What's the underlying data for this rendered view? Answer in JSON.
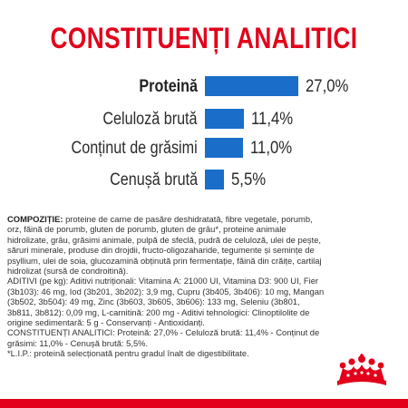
{
  "title": "CONSTITUENȚI ANALITICI",
  "colors": {
    "title": "#e2001a",
    "bar": "#1a6ec9",
    "text": "#2b2b2b",
    "footer_bar": "#e2001a",
    "logo": "#e2001a"
  },
  "chart_data": {
    "type": "bar",
    "orientation": "horizontal",
    "categories": [
      "Proteină",
      "Celuloză brută",
      "Conținut de grăsimi",
      "Cenușă brută"
    ],
    "values": [
      27.0,
      11.4,
      11.0,
      5.5
    ],
    "value_labels": [
      "27,0%",
      "11,4%",
      "11,0%",
      "5,5%"
    ],
    "unit": "%"
  },
  "composition": {
    "heading": "COMPOZIȚIE:",
    "ingredients": " proteine de carne de pasăre deshidratată, fibre vegetale, porumb, orz, făină de porumb, gluten de porumb, gluten de grâu*, proteine animale hidrolizate, grâu, grăsimi animale, pulpă de sfeclă, pudră de celuloză, ulei de pește, săruri minerale, produse din drojdii, fructo-oligozaharide, tegumente și semințe de psyllium, ulei de soia, glucozamină obținută prin fermentație, făină din crăițe, cartilaj hidrolizat (sursă de condroitină).",
    "additives": "ADITIVI (pe kg): Aditivi nutriționali: Vitamina A: 21000 UI, Vitamina D3: 900 UI, Fier (3b103): 46 mg, Iod (3b201, 3b202): 3,9 mg, Cupru (3b405, 3b406): 10 mg, Mangan (3b502, 3b504): 49 mg, Zinc (3b603, 3b605, 3b606): 133 mg, Seleniu (3b801, 3b811, 3b812): 0,09 mg, L-carnitină: 200 mg - Aditivi tehnologici: Clinoptilolite de origine sedimentară: 5 g - Conservanți - Antioxidanți.",
    "constituents": "CONSTITUENȚI ANALITICI: Proteină: 27,0% - Celuloză brută: 11,4% - Conținut de grăsimi: 11,0% - Cenușă brută: 5,5%.",
    "footnote": "*L.I.P.: proteină selecționată pentru gradul înalt de digestibilitate."
  },
  "logo": {
    "icon": "crown-icon"
  }
}
